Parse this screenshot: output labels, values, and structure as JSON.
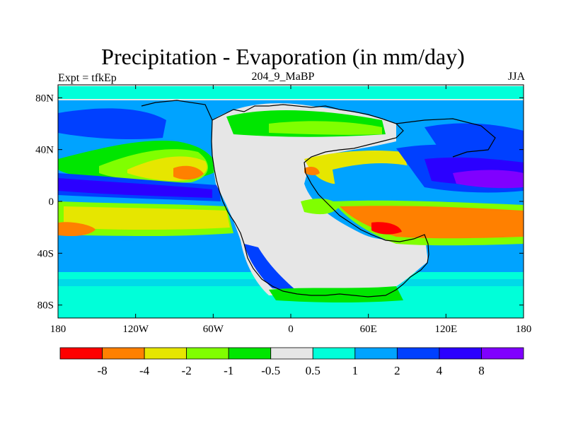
{
  "header": {
    "title": "Precipitation - Evaporation (in mm/day)",
    "subtitle": "204_9_MaBP",
    "left_label": "Expt = tfkEp",
    "right_label": "JJA"
  },
  "axes": {
    "x_ticks": [
      "180",
      "120W",
      "60W",
      "0",
      "60E",
      "120E",
      "180"
    ],
    "y_ticks": [
      "80N",
      "40N",
      "0",
      "40S",
      "80S"
    ]
  },
  "colorbar": {
    "colors": [
      "#ff0000",
      "#ff8000",
      "#e6e600",
      "#80ff00",
      "#00e600",
      "#e6e6e6",
      "#00ffd9",
      "#00a3ff",
      "#0040ff",
      "#2b00ff",
      "#8000ff"
    ],
    "labels": [
      "-8",
      "-4",
      "-2",
      "-1",
      "-0.5",
      "0.5",
      "1",
      "2",
      "4",
      "8"
    ]
  }
}
